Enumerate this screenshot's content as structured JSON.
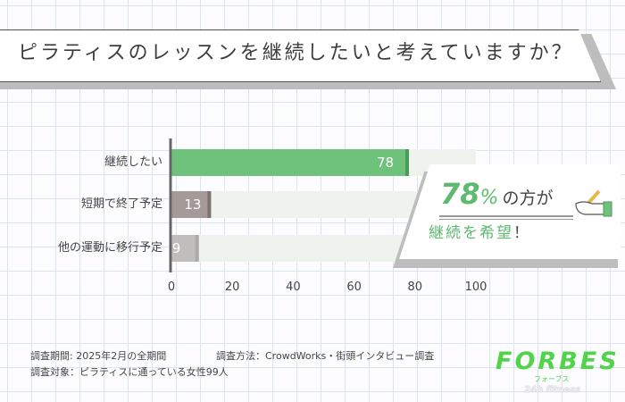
{
  "title": "ピラティスのレッスンを継続したいと考えていますか？",
  "chart_data": {
    "type": "bar",
    "orientation": "horizontal",
    "categories": [
      "継続したい",
      "短期で終了予定",
      "他の運動に移行予定"
    ],
    "values": [
      78,
      13,
      9
    ],
    "xlim": [
      0,
      100
    ],
    "xticks": [
      "0",
      "20",
      "40",
      "60",
      "80",
      "100"
    ],
    "colors": [
      "#6fc27b",
      "#a59a98",
      "#c0bdbc"
    ],
    "edge_colors": [
      "#4b9b59",
      "#7e7372",
      "#adaaa9"
    ],
    "track_color": "#eef3ee",
    "grid": false
  },
  "callout": {
    "percent": "78",
    "percent_unit": "%",
    "text1": "の方が",
    "text2": "継続を希望",
    "exclaim": "！"
  },
  "notes": {
    "period": "調査期間: 2025年2月の全期間",
    "method": "調査方法：CrowdWorks・街頭インタビュー調査",
    "target": "調査対象：ピラティスに通っている女性99人"
  },
  "logo": {
    "main": "FORBES",
    "sub": "フォーブス",
    "sub2": "24h fitness"
  }
}
